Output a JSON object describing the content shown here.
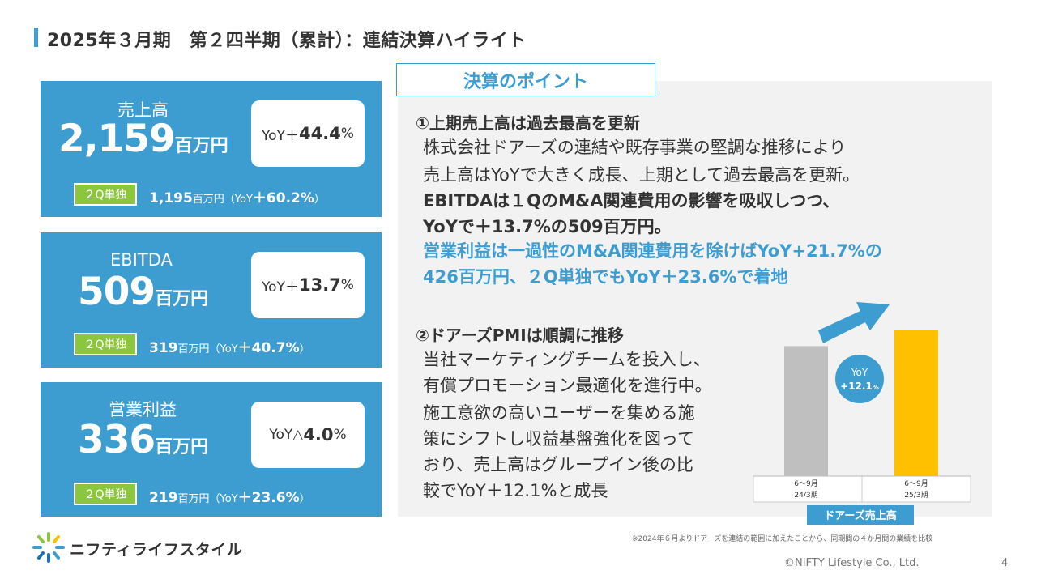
{
  "page_title": "2025年３月期　第２四半期（累計）：連結決算ハイライト",
  "kpis": [
    {
      "label": "売上高",
      "value": "2,159",
      "unit": "百万円",
      "yoy_prefix": "YoY＋",
      "yoy_value": "44.4",
      "yoy_suffix": "%",
      "tag": "２Q単独",
      "sub_value": "1,195",
      "sub_unit": "百万円",
      "sub_yoy_open": "（YoY",
      "sub_yoy": "＋60.2%",
      "sub_yoy_close": "）"
    },
    {
      "label": "EBITDA",
      "value": "509",
      "unit": "百万円",
      "yoy_prefix": "YoY＋",
      "yoy_value": "13.7",
      "yoy_suffix": "%",
      "tag": "２Q単独",
      "sub_value": "319",
      "sub_unit": "百万円",
      "sub_yoy_open": "（YoY",
      "sub_yoy": "＋40.7%",
      "sub_yoy_close": "）"
    },
    {
      "label": "営業利益",
      "value": "336",
      "unit": "百万円",
      "yoy_prefix": "YoY△",
      "yoy_value": "4.0",
      "yoy_suffix": "%",
      "tag": "２Q単独",
      "sub_value": "219",
      "sub_unit": "百万円",
      "sub_yoy_open": "（YoY",
      "sub_yoy": "＋23.6%",
      "sub_yoy_close": "）"
    }
  ],
  "points": {
    "heading": "決算のポイント",
    "p1_title": "①上期売上高は過去最高を更新",
    "p1_lines": [
      "株式会社ドアーズの連結や既存事業の堅調な推移により",
      "売上高はYoYで大きく成長、上期として過去最高を更新。",
      "EBITDAは１QのM&A関連費用の影響を吸収しつつ、",
      "YoYで＋13.7%の509百万円。",
      "営業利益は一過性のM&A関連費用を除けばYoY+21.7%の",
      "426百万円、２Q単独でもYoY＋23.6%で着地"
    ],
    "p2_title": "②ドアーズPMIは順調に推移",
    "p2_lines": [
      "当社マーケティングチームを投入し、",
      "有償プロモーション最適化を進行中。",
      "施工意欲の高いユーザーを集める施",
      "策にシフトし収益基盤強化を図って",
      "おり、売上高はグループイン後の比",
      "較でYoY＋12.1%と成長"
    ]
  },
  "chart_data": {
    "type": "bar",
    "categories": [
      "6～9月 24/3期",
      "6～9月 25/3期"
    ],
    "category_lines": [
      [
        "6～9月",
        "24/3期"
      ],
      [
        "6～9月",
        "25/3期"
      ]
    ],
    "values": [
      100,
      112.1
    ],
    "bar_colors": [
      "#bfbfbf",
      "#ffc000"
    ],
    "badge_label": "YoY",
    "badge_value": "+12.1",
    "badge_unit": "%",
    "title": "ドアーズ売上高",
    "xlabel": "",
    "ylabel": ""
  },
  "footnote": "※2024年６月よりドアーズを連結の範囲に加えたことから、同期間の４か月間の業績を比較",
  "copyright": "©NIFTY Lifestyle Co., Ltd.",
  "page_number": "4",
  "logo_text": "ニフティライフスタイル",
  "colors": {
    "accent": "#3d9dd0",
    "tag_green": "#8cc63f",
    "bar_prev": "#bfbfbf",
    "bar_curr": "#ffc000"
  }
}
